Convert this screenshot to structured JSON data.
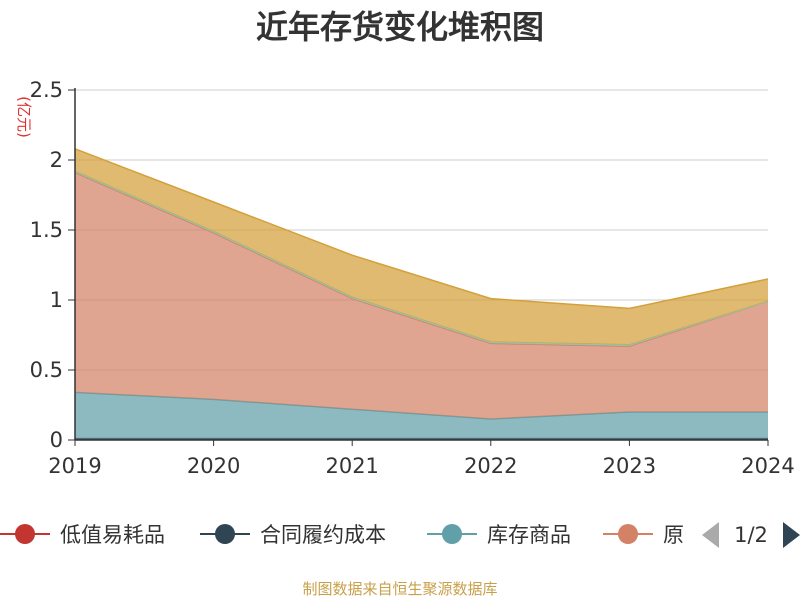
{
  "chart_data": {
    "type": "area",
    "stacked": true,
    "title": "近年存货变化堆积图",
    "unit_label": "(亿元)",
    "x": [
      "2019",
      "2020",
      "2021",
      "2022",
      "2023",
      "2024"
    ],
    "ylim": [
      0,
      2.5
    ],
    "yticks": [
      "0",
      "0.5",
      "1",
      "1.5",
      "2",
      "2.5"
    ],
    "grid": true,
    "legend_position": "bottom",
    "series": [
      {
        "name": "低值易耗品",
        "color": "#c23531",
        "values": [
          0.01,
          0.01,
          0.01,
          0.01,
          0.01,
          0.01
        ]
      },
      {
        "name": "合同履约成本",
        "color": "#2f4554",
        "values": [
          0.0,
          0.0,
          0.0,
          0.0,
          0.0,
          0.0
        ]
      },
      {
        "name": "库存商品",
        "color": "#61a0a8",
        "values": [
          0.33,
          0.28,
          0.21,
          0.14,
          0.19,
          0.19
        ]
      },
      {
        "name": "原材料",
        "color": "#d48265",
        "values": [
          1.57,
          1.19,
          0.79,
          0.54,
          0.47,
          0.79
        ]
      },
      {
        "name": "",
        "color": "#91c7ae",
        "values": [
          0.01,
          0.01,
          0.01,
          0.01,
          0.01,
          0.0
        ]
      },
      {
        "name": "",
        "color": "#d4a03a",
        "values": [
          0.16,
          0.21,
          0.3,
          0.31,
          0.26,
          0.16
        ]
      }
    ],
    "legend_visible": [
      {
        "name": "低值易耗品",
        "color": "#c23531"
      },
      {
        "name": "合同履约成本",
        "color": "#2f4554"
      },
      {
        "name": "库存商品",
        "color": "#61a0a8"
      },
      {
        "name": "原",
        "color": "#d48265"
      }
    ],
    "pager": "1/2",
    "source": "制图数据来自恒生聚源数据库"
  }
}
